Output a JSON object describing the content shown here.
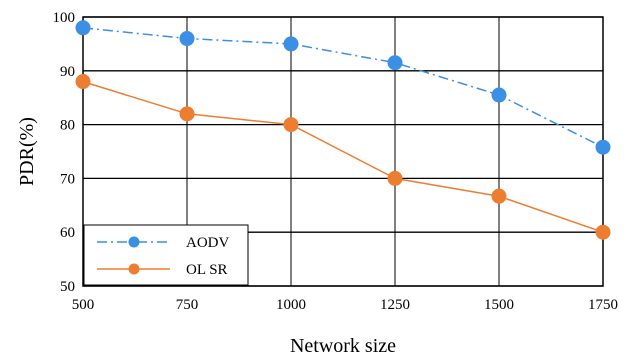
{
  "chart_data": {
    "type": "line",
    "xlabel": "Network size",
    "ylabel": "PDR(%)",
    "categories": [
      "500",
      "750",
      "1000",
      "1250",
      "1500",
      "1750"
    ],
    "ylim": [
      50,
      100
    ],
    "yticks": [
      "50",
      "60",
      "70",
      "80",
      "90",
      "100"
    ],
    "grid": true,
    "legend_position": "bottom-left",
    "series": [
      {
        "name": "AODV",
        "values": [
          98,
          96,
          95,
          91.5,
          85.5,
          75.8
        ],
        "color": "#3b8fe4",
        "style": "dash-dot"
      },
      {
        "name": "OL SR",
        "values": [
          88,
          82,
          80,
          70,
          66.7,
          60
        ],
        "color": "#ed7d31",
        "style": "solid"
      }
    ]
  }
}
